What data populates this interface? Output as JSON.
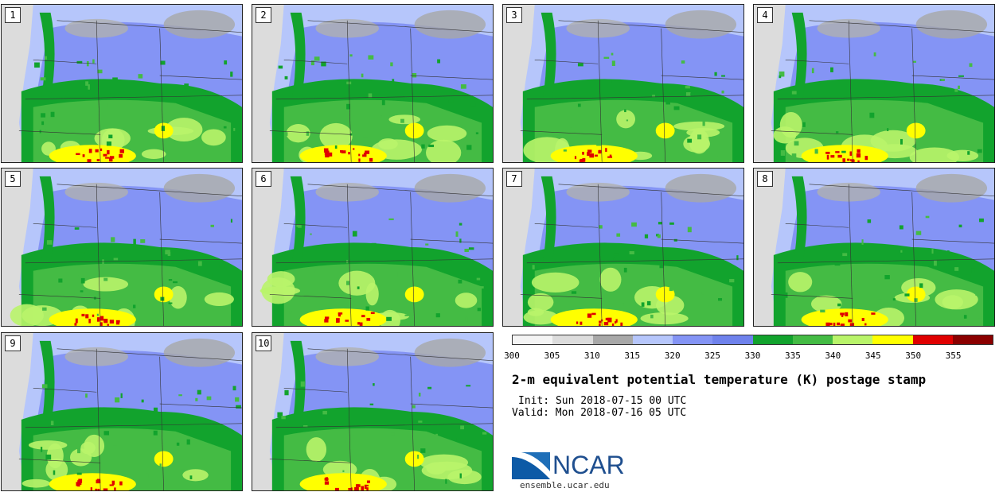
{
  "panels": [
    {
      "num": "1"
    },
    {
      "num": "2"
    },
    {
      "num": "3"
    },
    {
      "num": "4"
    },
    {
      "num": "5"
    },
    {
      "num": "6"
    },
    {
      "num": "7"
    },
    {
      "num": "8"
    },
    {
      "num": "9"
    },
    {
      "num": "10"
    }
  ],
  "colorbar": {
    "colors": [
      "#f4f4f4",
      "#dcdcdc",
      "#a8a8a8",
      "#b6c6fb",
      "#8494f5",
      "#6f82ec",
      "#12a32d",
      "#44bb44",
      "#b9f46a",
      "#ffff00",
      "#e00000",
      "#8b0000"
    ],
    "ticks": [
      "300",
      "305",
      "310",
      "315",
      "320",
      "325",
      "330",
      "335",
      "340",
      "345",
      "350",
      "355"
    ]
  },
  "title": "2-m equivalent potential temperature (K) postage stamp",
  "init": "Init: Sun 2018-07-15 00 UTC",
  "valid": "Valid: Mon 2018-07-16 05 UTC",
  "logo": {
    "text": "NCAR",
    "color": "#1f4f8f"
  },
  "site": "ensemble.ucar.edu"
}
